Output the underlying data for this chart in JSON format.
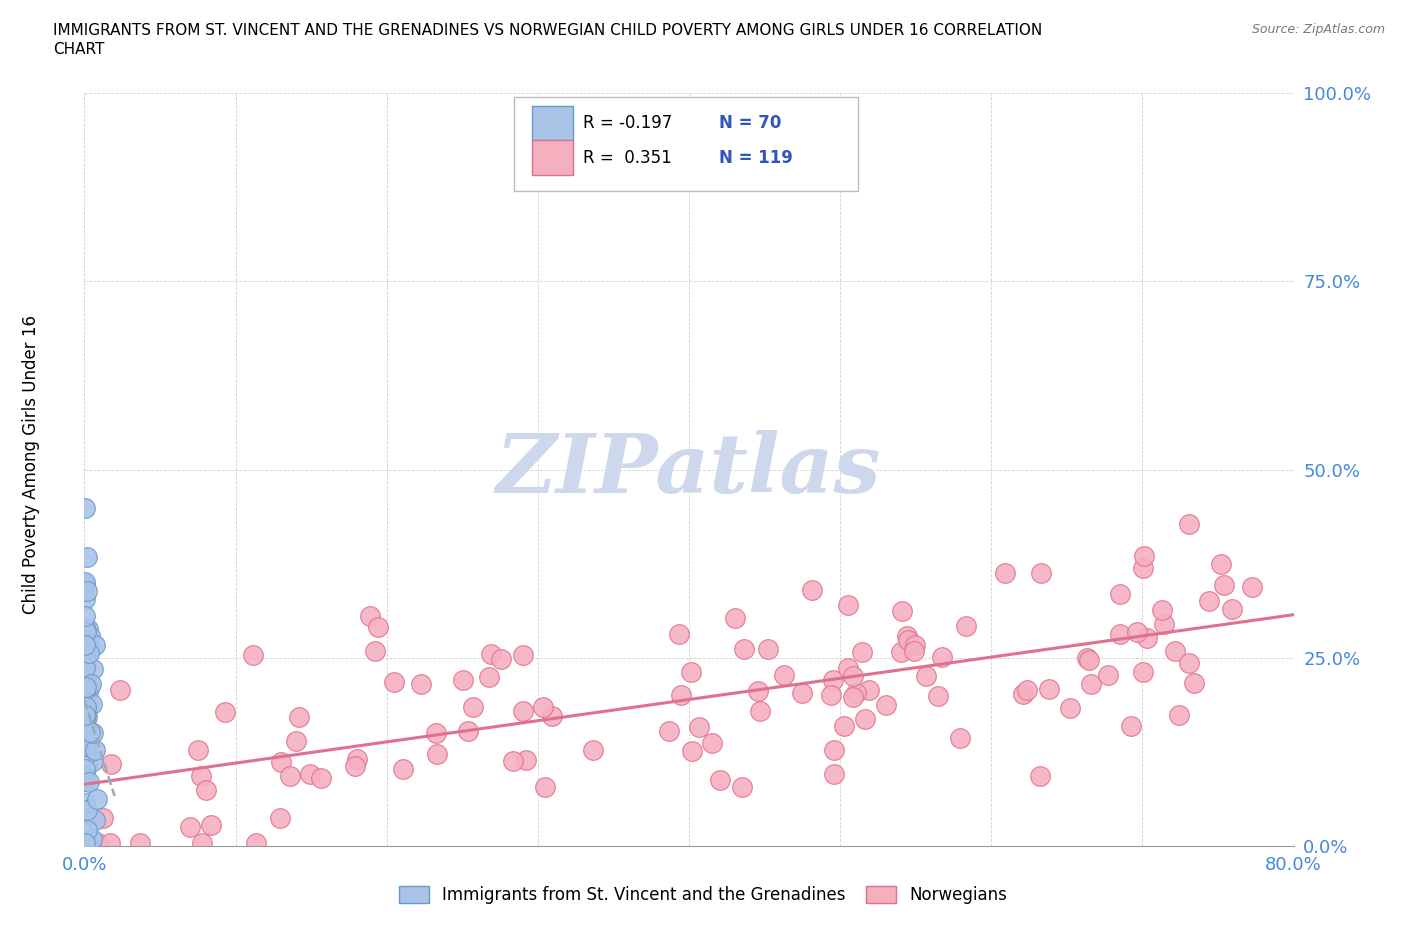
{
  "title_line1": "IMMIGRANTS FROM ST. VINCENT AND THE GRENADINES VS NORWEGIAN CHILD POVERTY AMONG GIRLS UNDER 16 CORRELATION",
  "title_line2": "CHART",
  "source_text": "Source: ZipAtlas.com",
  "ylabel": "Child Poverty Among Girls Under 16",
  "xlim": [
    0.0,
    0.8
  ],
  "ylim": [
    0.0,
    1.0
  ],
  "ytick_vals": [
    0.0,
    0.25,
    0.5,
    0.75,
    1.0
  ],
  "ytick_labels": [
    "0.0%",
    "25.0%",
    "50.0%",
    "75.0%",
    "100.0%"
  ],
  "xtick_vals": [
    0.0,
    0.1,
    0.2,
    0.3,
    0.4,
    0.5,
    0.6,
    0.7,
    0.8
  ],
  "xtick_labels": [
    "0.0%",
    "",
    "",
    "",
    "",
    "",
    "",
    "",
    "80.0%"
  ],
  "blue_fill": "#aac4e8",
  "blue_edge": "#6699cc",
  "pink_fill": "#f5b0c0",
  "pink_edge": "#e07090",
  "trend_pink": "#e07090",
  "trend_blue": "#99aabb",
  "watermark_color": "#cdd8ec",
  "watermark_text": "ZIPatlas",
  "tick_color": "#4488dd",
  "legend_R1": "-0.197",
  "legend_N1": "70",
  "legend_R2": "0.351",
  "legend_N2": "119",
  "legend_label1": "Immigrants from St. Vincent and the Grenadines",
  "legend_label2": "Norwegians",
  "legend_text_color": "#3355bb",
  "source_color": "#777777"
}
